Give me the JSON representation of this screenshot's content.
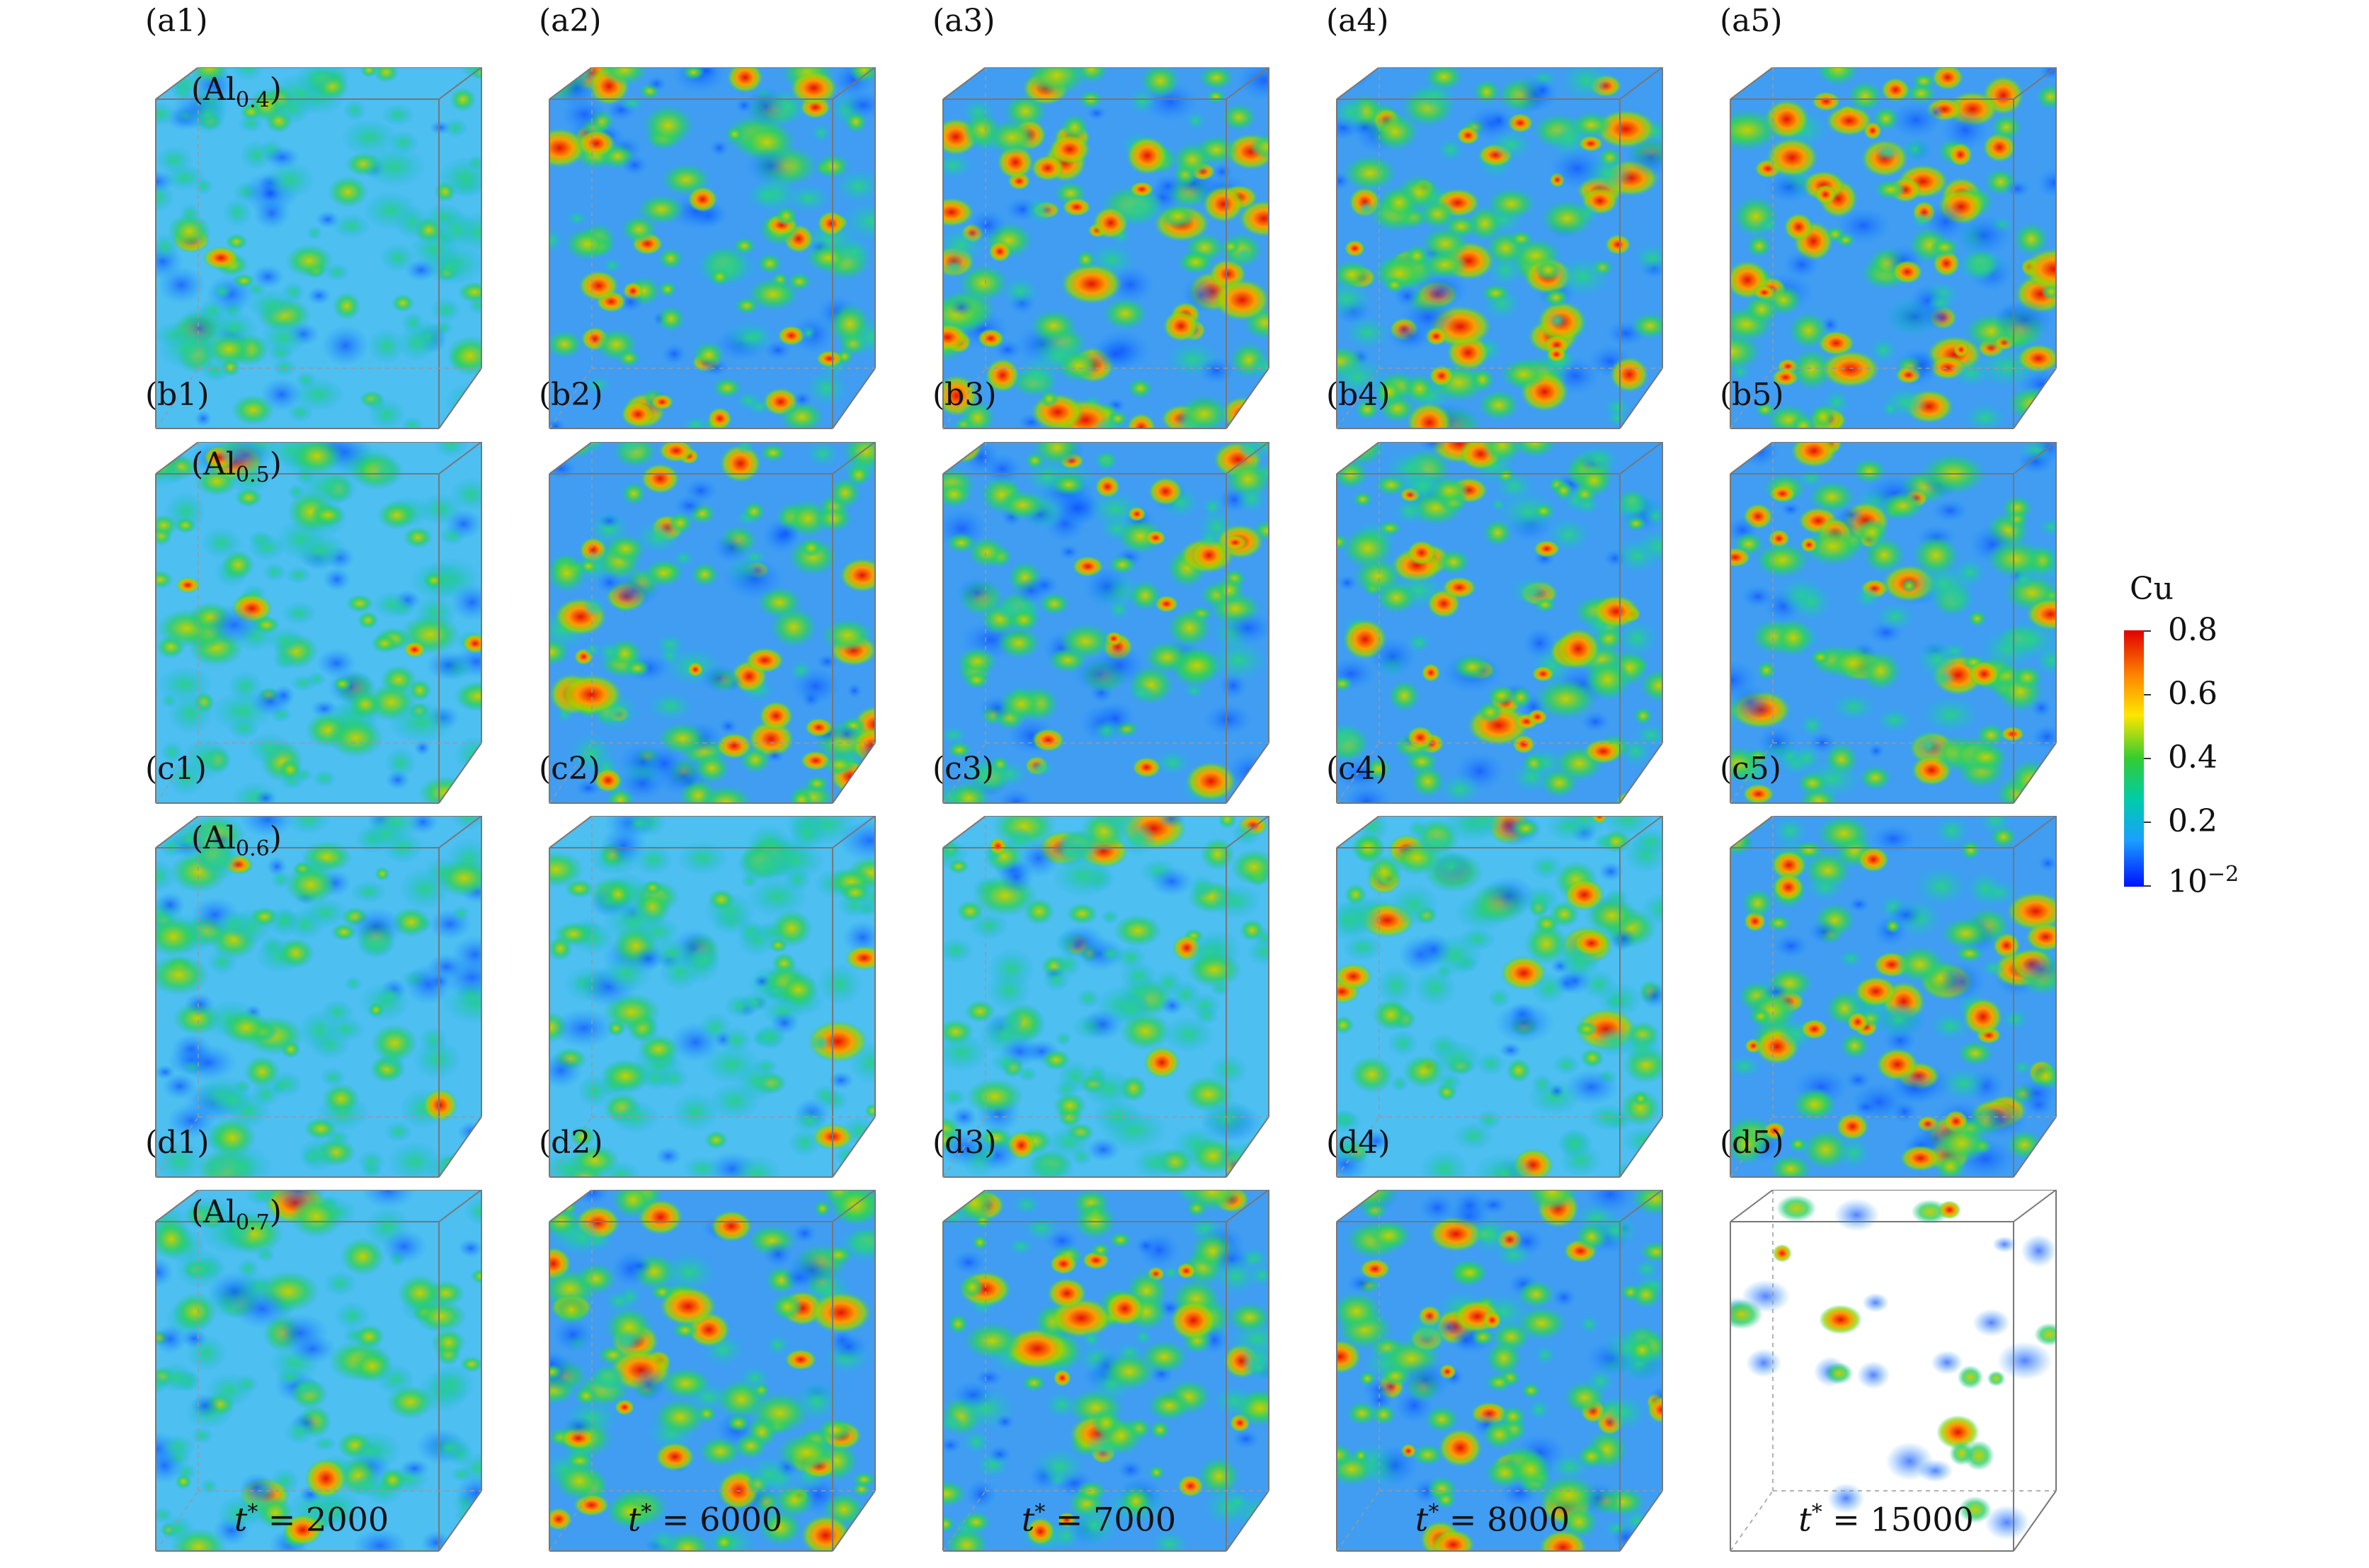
{
  "figure": {
    "rows": [
      {
        "alloy_base": "(Al",
        "alloy_sub": "0.4",
        "alloy_close": ")",
        "panels": [
          {
            "label": "(a1)",
            "level": 0.1
          },
          {
            "label": "(a2)",
            "level": 0.75
          },
          {
            "label": "(a3)",
            "level": 0.8
          },
          {
            "label": "(a4)",
            "level": 0.85
          },
          {
            "label": "(a5)",
            "level": 0.95
          }
        ]
      },
      {
        "alloy_base": "(Al",
        "alloy_sub": "0.5",
        "alloy_close": ")",
        "panels": [
          {
            "label": "(b1)",
            "level": 0.08
          },
          {
            "label": "(b2)",
            "level": 0.7
          },
          {
            "label": "(b3)",
            "level": 0.72
          },
          {
            "label": "(b4)",
            "level": 0.78
          },
          {
            "label": "(b5)",
            "level": 0.92
          }
        ]
      },
      {
        "alloy_base": "(Al",
        "alloy_sub": "0.6",
        "alloy_close": ")",
        "panels": [
          {
            "label": "(c1)",
            "level": 0.05
          },
          {
            "label": "(c2)",
            "level": 0.2
          },
          {
            "label": "(c3)",
            "level": 0.22
          },
          {
            "label": "(c4)",
            "level": 0.25
          },
          {
            "label": "(c5)",
            "level": 0.8
          }
        ]
      },
      {
        "alloy_base": "(Al",
        "alloy_sub": "0.7",
        "alloy_close": ")",
        "panels": [
          {
            "label": "(d1)",
            "level": 0.12
          },
          {
            "label": "(d2)",
            "level": 0.72
          },
          {
            "label": "(d3)",
            "level": 0.76
          },
          {
            "label": "(d4)",
            "level": 0.82
          },
          {
            "label": "(d5)",
            "level": 0.98,
            "sparse": true
          }
        ]
      }
    ],
    "times": [
      {
        "var": "t",
        "sup": "*",
        "eq": " = 2000"
      },
      {
        "var": "t",
        "sup": "*",
        "eq": " = 6000"
      },
      {
        "var": "t",
        "sup": "*",
        "eq": " = 7000"
      },
      {
        "var": "t",
        "sup": "*",
        "eq": " = 8000"
      },
      {
        "var": "t",
        "sup": "*",
        "eq": " = 15000"
      }
    ],
    "colorbar": {
      "title": "Cu",
      "ticks": [
        "0.8",
        "0.6",
        "0.4",
        "0.2"
      ],
      "bottom_base": "10",
      "bottom_exp": "−2",
      "colors": [
        "#e00000",
        "#ff8800",
        "#ffe600",
        "#33cc33",
        "#00ccaa",
        "#1a9fff",
        "#0010ff"
      ]
    }
  }
}
